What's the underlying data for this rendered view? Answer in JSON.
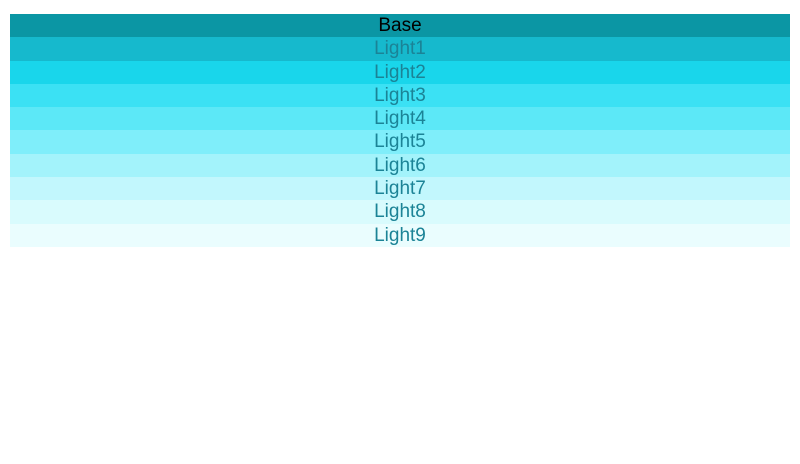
{
  "page": {
    "background": "#ffffff"
  },
  "palette": {
    "base_label_color": "#000000",
    "light_label_color": "#1b8396",
    "swatches": [
      {
        "label": "Base",
        "color": "#0b96a4",
        "text_color": "#000000"
      },
      {
        "label": "Light1",
        "color": "#16b9cd",
        "text_color": "#1b8396"
      },
      {
        "label": "Light2",
        "color": "#19d6eb",
        "text_color": "#1b8396"
      },
      {
        "label": "Light3",
        "color": "#3be1f4",
        "text_color": "#1b8396"
      },
      {
        "label": "Light4",
        "color": "#5ce8f7",
        "text_color": "#1b8396"
      },
      {
        "label": "Light5",
        "color": "#7feefa",
        "text_color": "#1b8396"
      },
      {
        "label": "Light6",
        "color": "#a3f3fb",
        "text_color": "#1b8396"
      },
      {
        "label": "Light7",
        "color": "#c2f7fd",
        "text_color": "#1b8396"
      },
      {
        "label": "Light8",
        "color": "#d9fbfd",
        "text_color": "#1b8396"
      },
      {
        "label": "Light9",
        "color": "#eafdfe",
        "text_color": "#1b8396"
      }
    ]
  }
}
